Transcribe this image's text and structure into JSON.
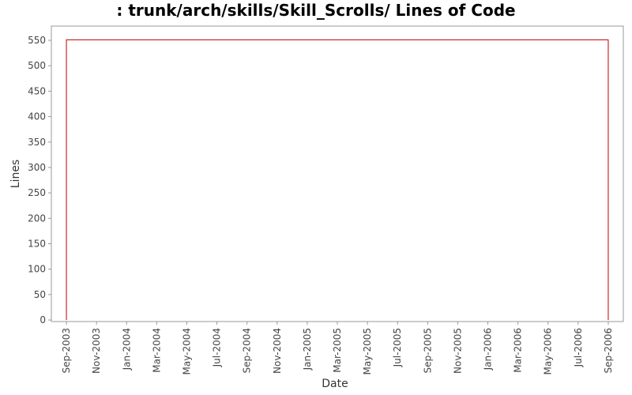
{
  "chart_data": {
    "type": "line",
    "title": ": trunk/arch/skills/Skill_Scrolls/ Lines of Code",
    "x_label": "Date",
    "y_label": "Lines",
    "x": [
      "Sep-2003",
      "Sep-2003",
      "Sep-2006",
      "Sep-2006"
    ],
    "series": [
      {
        "name": "Lines",
        "color": "#c00000",
        "values": [
          0,
          551,
          551,
          0
        ]
      }
    ],
    "xlim": [
      "Aug-2003",
      "Oct-2006"
    ],
    "xticks": [
      "Sep-2003",
      "Nov-2003",
      "Jan-2004",
      "Mar-2004",
      "May-2004",
      "Jul-2004",
      "Sep-2004",
      "Nov-2004",
      "Jan-2005",
      "Mar-2005",
      "May-2005",
      "Jul-2005",
      "Sep-2005",
      "Nov-2005",
      "Jan-2006",
      "Mar-2006",
      "May-2006",
      "Jul-2006",
      "Sep-2006"
    ],
    "ylim": [
      -3,
      578
    ],
    "yticks": [
      0,
      50,
      100,
      150,
      200,
      250,
      300,
      350,
      400,
      450,
      500,
      550
    ]
  }
}
